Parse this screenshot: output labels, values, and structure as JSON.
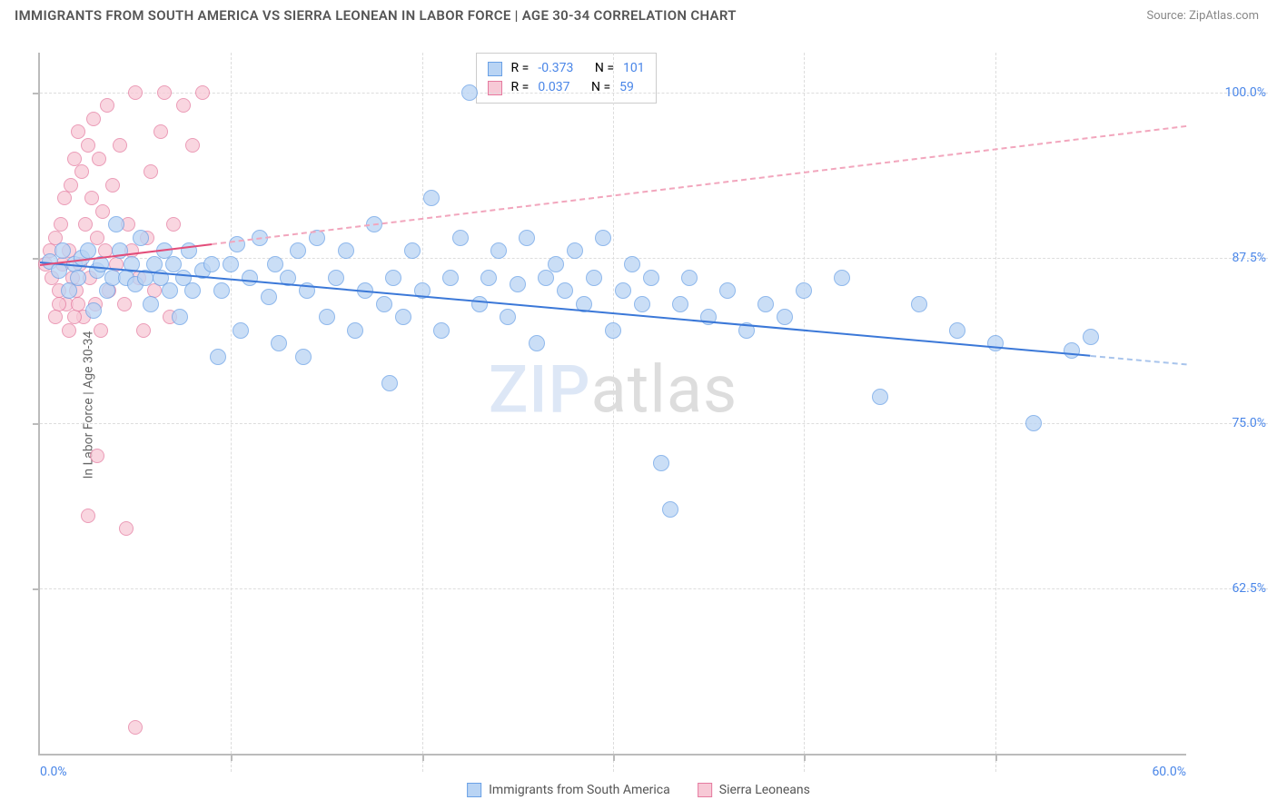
{
  "title": "IMMIGRANTS FROM SOUTH AMERICA VS SIERRA LEONEAN IN LABOR FORCE | AGE 30-34 CORRELATION CHART",
  "source": "Source: ZipAtlas.com",
  "y_axis_label": "In Labor Force | Age 30-34",
  "watermark_a": "ZIP",
  "watermark_b": "atlas",
  "chart": {
    "type": "scatter",
    "xlim": [
      0,
      60
    ],
    "ylim": [
      50,
      103
    ],
    "background_color": "#ffffff",
    "grid_color": "#dddddd",
    "axis_color": "#bbbbbb",
    "xtick_label_start": "0.0%",
    "xtick_label_end": "60.0%",
    "xticks_minor": [
      10,
      20,
      30,
      40,
      50
    ],
    "yticks": [
      {
        "v": 62.5,
        "label": "62.5%"
      },
      {
        "v": 75.0,
        "label": "75.0%"
      },
      {
        "v": 87.5,
        "label": "87.5%"
      },
      {
        "v": 100.0,
        "label": "100.0%"
      }
    ],
    "tick_color": "#4a86e8",
    "tick_fontsize": 14
  },
  "series": {
    "south_america": {
      "label": "Immigrants from South America",
      "fill": "#b9d4f4",
      "stroke": "#6aa1e6",
      "trend_color": "#3b78d8",
      "trend_dash_color": "#a8c4ec",
      "R": "-0.373",
      "N": "101",
      "marker_radius": 9,
      "trend": {
        "x1": 0,
        "y1": 87.2,
        "x2": 60,
        "y2": 79.5,
        "solid_until_x": 55
      },
      "points": [
        [
          0.5,
          87.2
        ],
        [
          1.0,
          86.5
        ],
        [
          1.2,
          88.0
        ],
        [
          1.5,
          85.0
        ],
        [
          1.8,
          87.0
        ],
        [
          2.0,
          86.0
        ],
        [
          2.2,
          87.5
        ],
        [
          2.5,
          88.0
        ],
        [
          2.8,
          83.5
        ],
        [
          3.0,
          86.5
        ],
        [
          3.2,
          87.0
        ],
        [
          3.5,
          85.0
        ],
        [
          3.8,
          86.0
        ],
        [
          4.0,
          90.0
        ],
        [
          4.2,
          88.0
        ],
        [
          4.5,
          86.0
        ],
        [
          4.8,
          87.0
        ],
        [
          5.0,
          85.5
        ],
        [
          5.3,
          89.0
        ],
        [
          5.5,
          86.0
        ],
        [
          5.8,
          84.0
        ],
        [
          6.0,
          87.0
        ],
        [
          6.3,
          86.0
        ],
        [
          6.5,
          88.0
        ],
        [
          6.8,
          85.0
        ],
        [
          7.0,
          87.0
        ],
        [
          7.3,
          83.0
        ],
        [
          7.5,
          86.0
        ],
        [
          7.8,
          88.0
        ],
        [
          8.0,
          85.0
        ],
        [
          8.5,
          86.5
        ],
        [
          9.0,
          87.0
        ],
        [
          9.3,
          80.0
        ],
        [
          9.5,
          85.0
        ],
        [
          10.0,
          87.0
        ],
        [
          10.3,
          88.5
        ],
        [
          10.5,
          82.0
        ],
        [
          11.0,
          86.0
        ],
        [
          11.5,
          89.0
        ],
        [
          12.0,
          84.5
        ],
        [
          12.3,
          87.0
        ],
        [
          12.5,
          81.0
        ],
        [
          13.0,
          86.0
        ],
        [
          13.5,
          88.0
        ],
        [
          13.8,
          80.0
        ],
        [
          14.0,
          85.0
        ],
        [
          14.5,
          89.0
        ],
        [
          15.0,
          83.0
        ],
        [
          15.5,
          86.0
        ],
        [
          16.0,
          88.0
        ],
        [
          16.5,
          82.0
        ],
        [
          17.0,
          85.0
        ],
        [
          17.5,
          90.0
        ],
        [
          18.0,
          84.0
        ],
        [
          18.3,
          78.0
        ],
        [
          18.5,
          86.0
        ],
        [
          19.0,
          83.0
        ],
        [
          19.5,
          88.0
        ],
        [
          20.0,
          85.0
        ],
        [
          20.5,
          92.0
        ],
        [
          21.0,
          82.0
        ],
        [
          21.5,
          86.0
        ],
        [
          22.0,
          89.0
        ],
        [
          22.5,
          100.0
        ],
        [
          23.0,
          84.0
        ],
        [
          23.5,
          86.0
        ],
        [
          24.0,
          88.0
        ],
        [
          24.5,
          83.0
        ],
        [
          25.0,
          85.5
        ],
        [
          25.5,
          89.0
        ],
        [
          26.0,
          81.0
        ],
        [
          26.5,
          86.0
        ],
        [
          27.0,
          87.0
        ],
        [
          27.5,
          85.0
        ],
        [
          28.0,
          88.0
        ],
        [
          28.5,
          84.0
        ],
        [
          29.0,
          86.0
        ],
        [
          29.5,
          89.0
        ],
        [
          30.0,
          82.0
        ],
        [
          30.5,
          85.0
        ],
        [
          31.0,
          87.0
        ],
        [
          31.5,
          84.0
        ],
        [
          32.0,
          86.0
        ],
        [
          32.5,
          72.0
        ],
        [
          33.0,
          68.5
        ],
        [
          33.5,
          84.0
        ],
        [
          34.0,
          86.0
        ],
        [
          35.0,
          83.0
        ],
        [
          36.0,
          85.0
        ],
        [
          37.0,
          82.0
        ],
        [
          38.0,
          84.0
        ],
        [
          39.0,
          83.0
        ],
        [
          40.0,
          85.0
        ],
        [
          42.0,
          86.0
        ],
        [
          44.0,
          77.0
        ],
        [
          46.0,
          84.0
        ],
        [
          48.0,
          82.0
        ],
        [
          50.0,
          81.0
        ],
        [
          52.0,
          75.0
        ],
        [
          54.0,
          80.5
        ],
        [
          55.0,
          81.5
        ]
      ]
    },
    "sierra_leonean": {
      "label": "Sierra Leoneans",
      "fill": "#f7c9d6",
      "stroke": "#e57ba0",
      "trend_color": "#e34d7a",
      "trend_dash_color": "#f2a6bd",
      "R": "0.037",
      "N": "59",
      "marker_radius": 8,
      "trend": {
        "x1": 0,
        "y1": 87.0,
        "x2": 60,
        "y2": 97.5,
        "solid_until_x": 9
      },
      "points": [
        [
          0.3,
          87.0
        ],
        [
          0.5,
          88.0
        ],
        [
          0.6,
          86.0
        ],
        [
          0.8,
          89.0
        ],
        [
          1.0,
          85.0
        ],
        [
          1.1,
          90.0
        ],
        [
          1.2,
          87.0
        ],
        [
          1.3,
          92.0
        ],
        [
          1.4,
          84.0
        ],
        [
          1.5,
          88.0
        ],
        [
          1.6,
          93.0
        ],
        [
          1.7,
          86.0
        ],
        [
          1.8,
          95.0
        ],
        [
          1.9,
          85.0
        ],
        [
          2.0,
          97.0
        ],
        [
          2.1,
          87.0
        ],
        [
          2.2,
          94.0
        ],
        [
          2.3,
          83.0
        ],
        [
          2.4,
          90.0
        ],
        [
          2.5,
          96.0
        ],
        [
          2.6,
          86.0
        ],
        [
          2.7,
          92.0
        ],
        [
          2.8,
          98.0
        ],
        [
          2.9,
          84.0
        ],
        [
          3.0,
          89.0
        ],
        [
          3.1,
          95.0
        ],
        [
          3.2,
          82.0
        ],
        [
          3.3,
          91.0
        ],
        [
          3.4,
          88.0
        ],
        [
          3.5,
          99.0
        ],
        [
          3.6,
          85.0
        ],
        [
          3.8,
          93.0
        ],
        [
          4.0,
          87.0
        ],
        [
          4.2,
          96.0
        ],
        [
          4.4,
          84.0
        ],
        [
          4.6,
          90.0
        ],
        [
          4.8,
          88.0
        ],
        [
          5.0,
          100.0
        ],
        [
          5.2,
          86.0
        ],
        [
          5.4,
          82.0
        ],
        [
          5.6,
          89.0
        ],
        [
          5.8,
          94.0
        ],
        [
          6.0,
          85.0
        ],
        [
          6.3,
          97.0
        ],
        [
          6.5,
          100.0
        ],
        [
          6.8,
          83.0
        ],
        [
          7.0,
          90.0
        ],
        [
          7.5,
          99.0
        ],
        [
          8.0,
          96.0
        ],
        [
          8.5,
          100.0
        ],
        [
          5.0,
          52.0
        ],
        [
          4.5,
          67.0
        ],
        [
          3.0,
          72.5
        ],
        [
          1.8,
          83.0
        ],
        [
          2.5,
          68.0
        ],
        [
          1.0,
          84.0
        ],
        [
          0.8,
          83.0
        ],
        [
          1.5,
          82.0
        ],
        [
          2.0,
          84.0
        ]
      ]
    }
  },
  "legend_top": {
    "R_label": "R =",
    "N_label": "N =",
    "value_color": "#4a86e8"
  }
}
